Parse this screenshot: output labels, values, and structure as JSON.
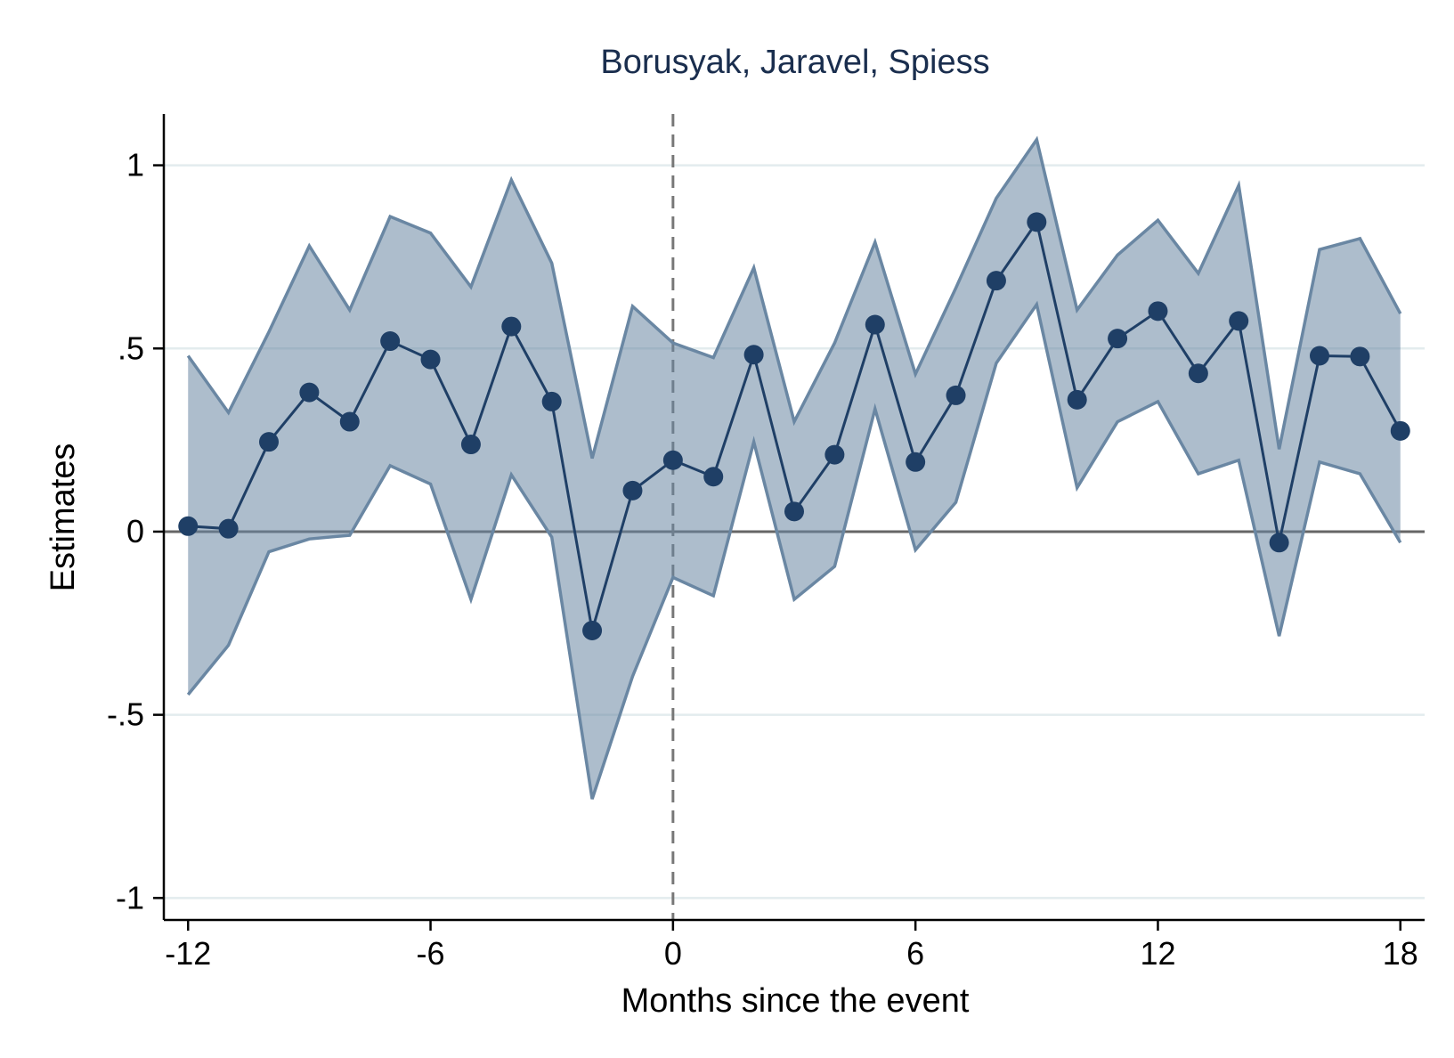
{
  "chart_data": {
    "type": "line",
    "title": "Borusyak, Jaravel, Spiess",
    "xlabel": "Months since the event",
    "ylabel": "Estimates",
    "xlim": [
      -12.6,
      18.6
    ],
    "ylim": [
      -1.06,
      1.14
    ],
    "x_ticks": [
      -12,
      -6,
      0,
      6,
      12,
      18
    ],
    "x_tick_labels": [
      "-12",
      "-6",
      "0",
      "6",
      "12",
      "18"
    ],
    "y_ticks": [
      1,
      0.5,
      0,
      -0.5,
      -1
    ],
    "y_tick_labels": [
      "1",
      ".5",
      "0",
      "-.5",
      "-1"
    ],
    "grid": true,
    "reference_lines": {
      "horizontal_y": 0,
      "vertical_x": 0
    },
    "x": [
      -12,
      -11,
      -10,
      -9,
      -8,
      -7,
      -6,
      -5,
      -4,
      -3,
      -2,
      -1,
      0,
      1,
      2,
      3,
      4,
      5,
      6,
      7,
      8,
      9,
      10,
      11,
      12,
      13,
      14,
      15,
      16,
      17,
      18
    ],
    "series": [
      {
        "values": [
          0.015,
          0.008,
          0.245,
          0.38,
          0.3,
          0.52,
          0.47,
          0.238,
          0.56,
          0.355,
          -0.27,
          0.112,
          0.195,
          0.15,
          0.483,
          0.055,
          0.21,
          0.565,
          0.19,
          0.372,
          0.685,
          0.845,
          0.36,
          0.527,
          0.602,
          0.432,
          0.575,
          -0.03,
          0.48,
          0.478,
          0.275
        ],
        "ci_lower": [
          -0.445,
          -0.31,
          -0.055,
          -0.02,
          -0.01,
          0.18,
          0.13,
          -0.185,
          0.155,
          -0.015,
          -0.73,
          -0.395,
          -0.125,
          -0.175,
          0.245,
          -0.185,
          -0.095,
          0.335,
          -0.05,
          0.08,
          0.46,
          0.62,
          0.12,
          0.3,
          0.355,
          0.158,
          0.195,
          -0.285,
          0.19,
          0.158,
          -0.03
        ],
        "ci_upper": [
          0.48,
          0.325,
          0.545,
          0.78,
          0.605,
          0.86,
          0.815,
          0.668,
          0.96,
          0.733,
          0.2,
          0.615,
          0.515,
          0.475,
          0.72,
          0.3,
          0.515,
          0.79,
          0.43,
          0.665,
          0.91,
          1.07,
          0.605,
          0.755,
          0.85,
          0.705,
          0.945,
          0.225,
          0.77,
          0.8,
          0.595
        ]
      }
    ],
    "colors": {
      "line": "#1f3f66",
      "band_fill": "#6a87a3",
      "band_edge": "#6a87a3",
      "grid": "#e3ecee",
      "title": "#1a2e4e",
      "zero_line": "#666666",
      "event_line": "#777777"
    }
  }
}
